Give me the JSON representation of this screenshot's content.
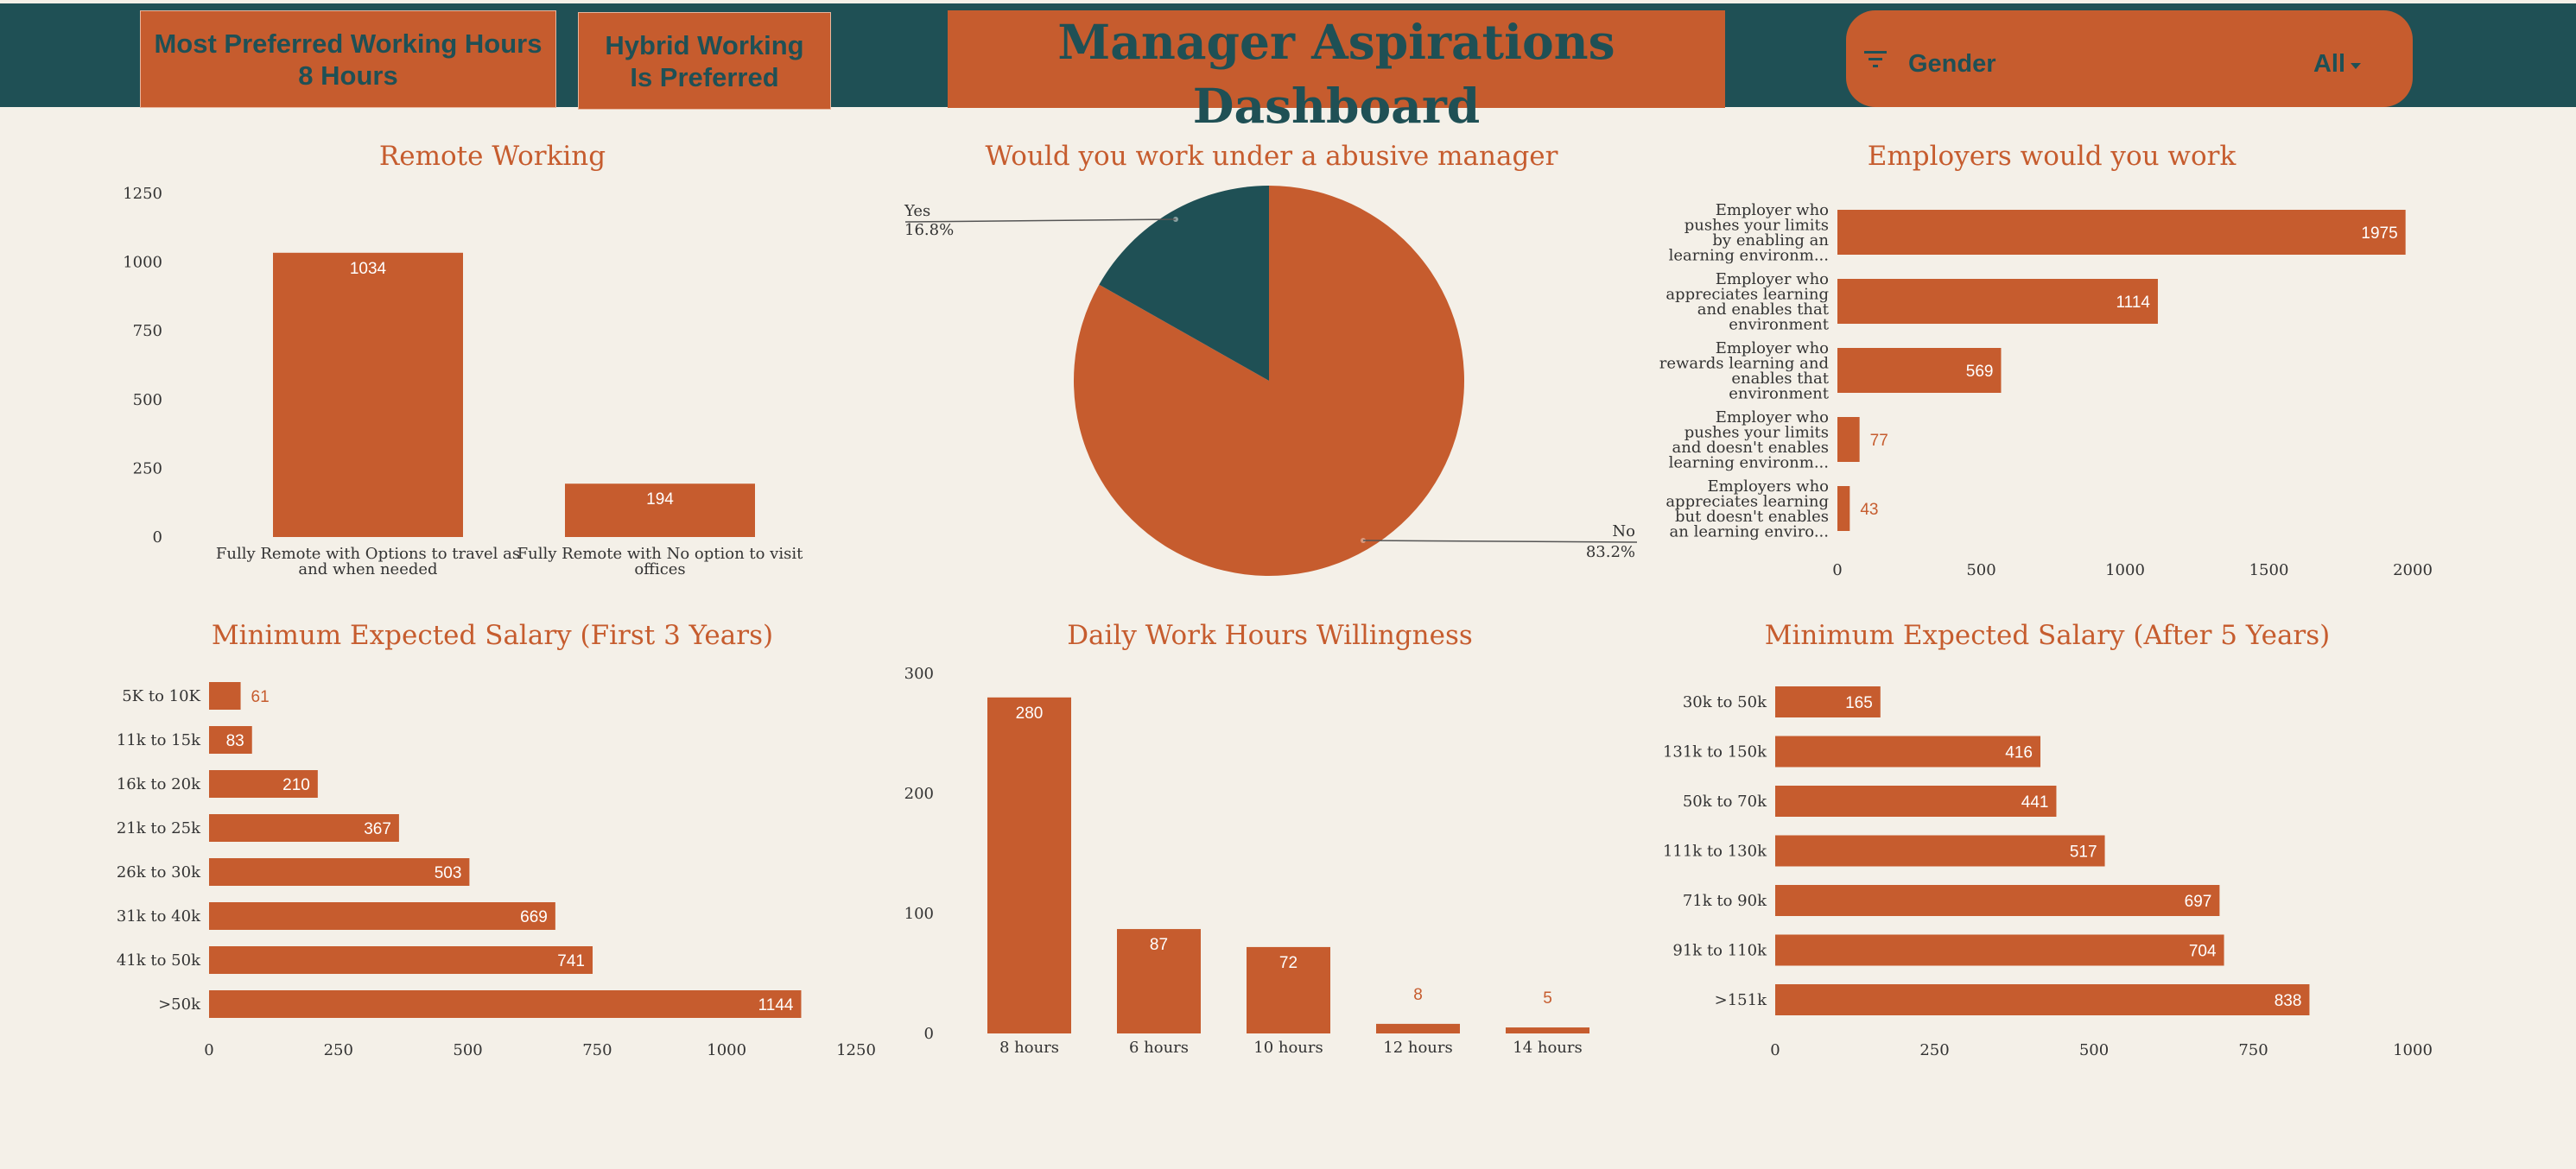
{
  "header": {
    "kpi1": {
      "line1": "Most Preferred Working Hours",
      "line2": "8 Hours"
    },
    "kpi2": {
      "line1": "Hybrid Working",
      "line2": "Is Preferred"
    },
    "title": "Manager Aspirations Dashboard",
    "slicer": {
      "label": "Gender",
      "value": "All",
      "icon": "filter-icon"
    }
  },
  "colors": {
    "orange": "#c65c2e",
    "teal": "#1f5055",
    "background": "#f4f0e8"
  },
  "chart_data": [
    {
      "id": "remote",
      "type": "bar",
      "title": "Remote Working",
      "categories": [
        "Fully Remote with Options to travel as and when needed",
        "Fully Remote with No option to visit offices"
      ],
      "category_lines": [
        [
          "Fully Remote with Options to travel as",
          "and when needed"
        ],
        [
          "Fully Remote with No option to visit",
          "offices"
        ]
      ],
      "values": [
        1034,
        194
      ],
      "ylim": [
        0,
        1250
      ],
      "yticks": [
        0,
        250,
        500,
        750,
        1000,
        1250
      ],
      "grid": false
    },
    {
      "id": "abusive",
      "type": "pie",
      "title": "Would you work under a abusive manager",
      "slices": [
        {
          "label": "Yes",
          "percent": "16.8%",
          "value": 16.8,
          "color": "#1f5055"
        },
        {
          "label": "No",
          "percent": "83.2%",
          "value": 83.2,
          "color": "#c65c2e"
        }
      ]
    },
    {
      "id": "employers",
      "type": "bar",
      "orientation": "horizontal",
      "title": "Employers would you work",
      "categories": [
        "Employer who pushes your limits by enabling an learning environm...",
        "Employer who appreciates learning and enables that environment",
        "Employer who rewards learning and enables that environment",
        "Employer who pushes your limits and doesn't enables learning environm...",
        "Employers who appreciates learning but doesn't enables an learning enviro..."
      ],
      "category_lines": [
        [
          "Employer who",
          "pushes your limits",
          "by enabling an",
          "learning environm..."
        ],
        [
          "Employer who",
          "appreciates learning",
          "and enables that",
          "environment"
        ],
        [
          "Employer who",
          "rewards learning and",
          "enables that",
          "environment"
        ],
        [
          "Employer who",
          "pushes your limits",
          "and doesn't enables",
          "learning environm..."
        ],
        [
          "Employers who",
          "appreciates learning",
          "but doesn't enables",
          "an learning enviro..."
        ]
      ],
      "values": [
        1975,
        1114,
        569,
        77,
        43
      ],
      "xlim": [
        0,
        2000
      ],
      "xticks": [
        0,
        500,
        1000,
        1500,
        2000
      ]
    },
    {
      "id": "salary3",
      "type": "bar",
      "orientation": "horizontal",
      "title": "Minimum Expected Salary (First 3 Years)",
      "categories": [
        "5K to 10K",
        "11k to 15k",
        "16k to 20k",
        "21k to 25k",
        "26k to 30k",
        "31k to 40k",
        "41k to 50k",
        ">50k"
      ],
      "values": [
        61,
        83,
        210,
        367,
        503,
        669,
        741,
        1144
      ],
      "xlim": [
        0,
        1250
      ],
      "xticks": [
        0,
        250,
        500,
        750,
        1000,
        1250
      ]
    },
    {
      "id": "hours",
      "type": "bar",
      "title": "Daily Work Hours Willingness",
      "categories": [
        "8 hours",
        "6 hours",
        "10 hours",
        "12 hours",
        "14 hours"
      ],
      "values": [
        280,
        87,
        72,
        8,
        5
      ],
      "ylim": [
        0,
        300
      ],
      "yticks": [
        0,
        100,
        200,
        300
      ]
    },
    {
      "id": "salary5",
      "type": "bar",
      "orientation": "horizontal",
      "title": "Minimum Expected Salary (After 5 Years)",
      "categories": [
        "30k to 50k",
        "131k to 150k",
        "50k to 70k",
        "111k to 130k",
        "71k to 90k",
        "91k to 110k",
        ">151k"
      ],
      "values": [
        165,
        416,
        441,
        517,
        697,
        704,
        838
      ],
      "xlim": [
        0,
        1000
      ],
      "xticks": [
        0,
        250,
        500,
        750,
        1000
      ]
    }
  ]
}
